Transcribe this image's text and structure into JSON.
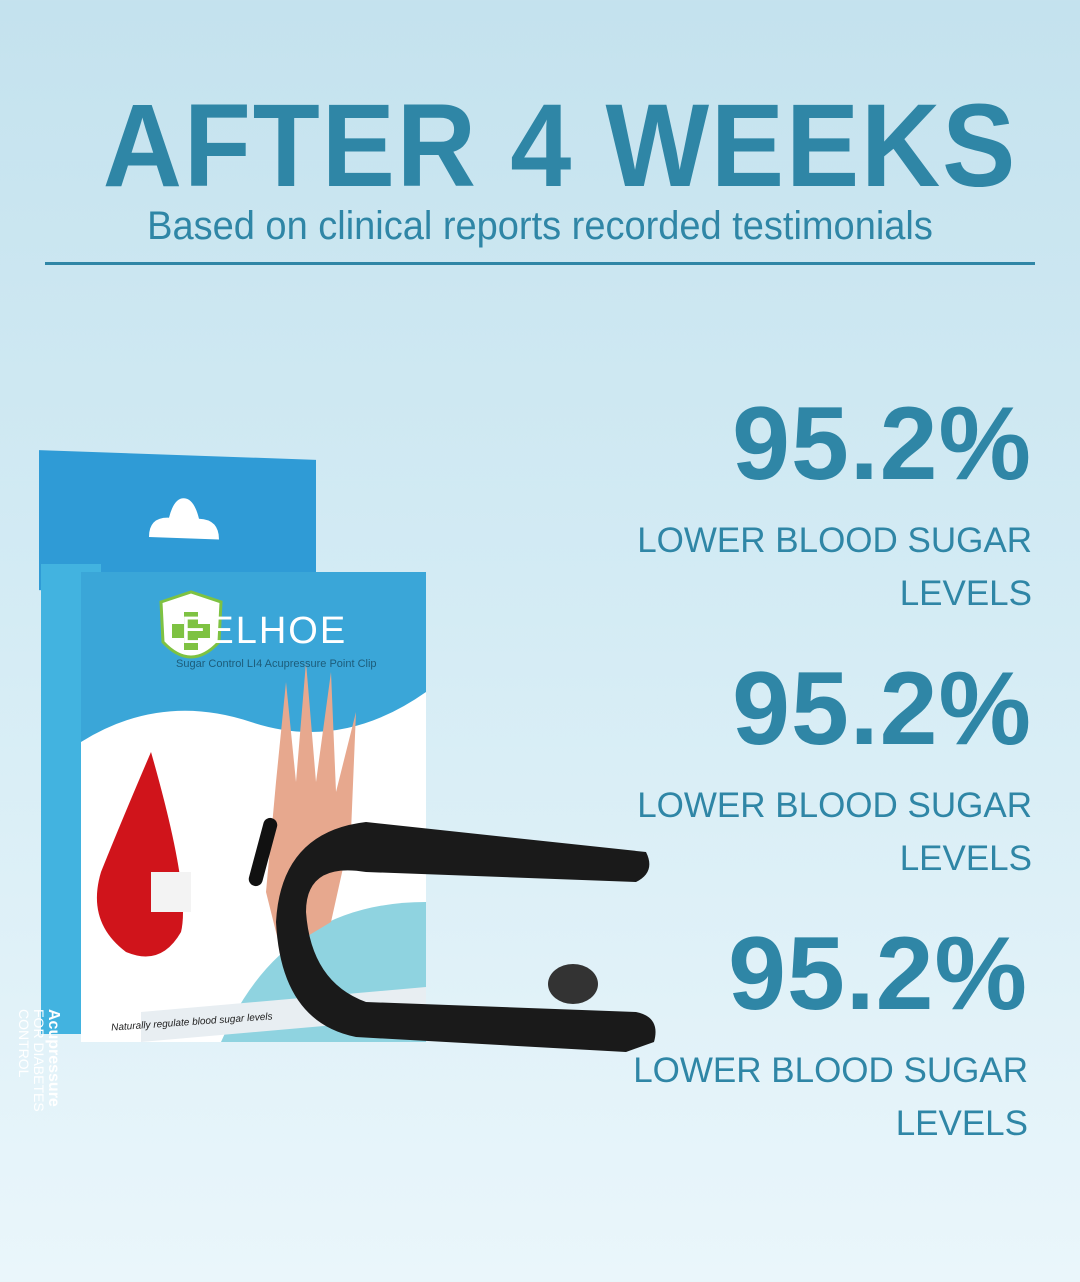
{
  "header": {
    "title": "AFTER 4 WEEKS",
    "subtitle": "Based on clinical reports recorded testimonials"
  },
  "stats": [
    {
      "value": "95.2%",
      "label_line1": "LOWER BLOOD SUGAR",
      "label_line2": "LEVELS"
    },
    {
      "value": "95.2%",
      "label_line1": "LOWER BLOOD SUGAR",
      "label_line2": "LEVELS"
    },
    {
      "value": "95.2%",
      "label_line1": "LOWER BLOOD SUGAR",
      "label_line2": "LEVELS"
    }
  ],
  "product": {
    "brand": "EELHOE",
    "tagline": "Sugar Control  LI4 Acupressure Point Clip",
    "bottom_text": "Naturally regulate blood sugar levels",
    "side_title": "Acupressure",
    "side_sub1": "FOR DIABETES",
    "side_sub2": "CONTROL"
  },
  "colors": {
    "accent": "#2f86a6",
    "box": "#3aa6d8",
    "drop": "#d0141b"
  }
}
